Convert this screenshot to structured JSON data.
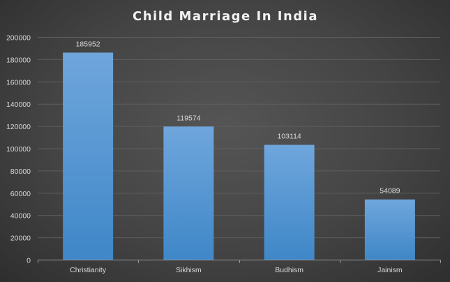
{
  "chart_data": {
    "type": "bar",
    "title": "Child Marriage In India",
    "categories": [
      "Christianity",
      "Sikhism",
      "Budhism",
      "Jainism"
    ],
    "values": [
      185952,
      119574,
      103114,
      54089
    ],
    "data_labels": [
      "185952",
      "119574",
      "103114",
      "54089"
    ],
    "xlabel": "",
    "ylabel": "",
    "ylim": [
      0,
      200000
    ],
    "yticks": [
      0,
      20000,
      40000,
      60000,
      80000,
      100000,
      120000,
      140000,
      160000,
      180000,
      200000
    ],
    "grid": true,
    "legend": "none",
    "colors": {
      "bar_top": "#6fa6dc",
      "bar_bottom": "#3f87c8",
      "background": "#444444",
      "text": "#d9d9d9"
    }
  }
}
